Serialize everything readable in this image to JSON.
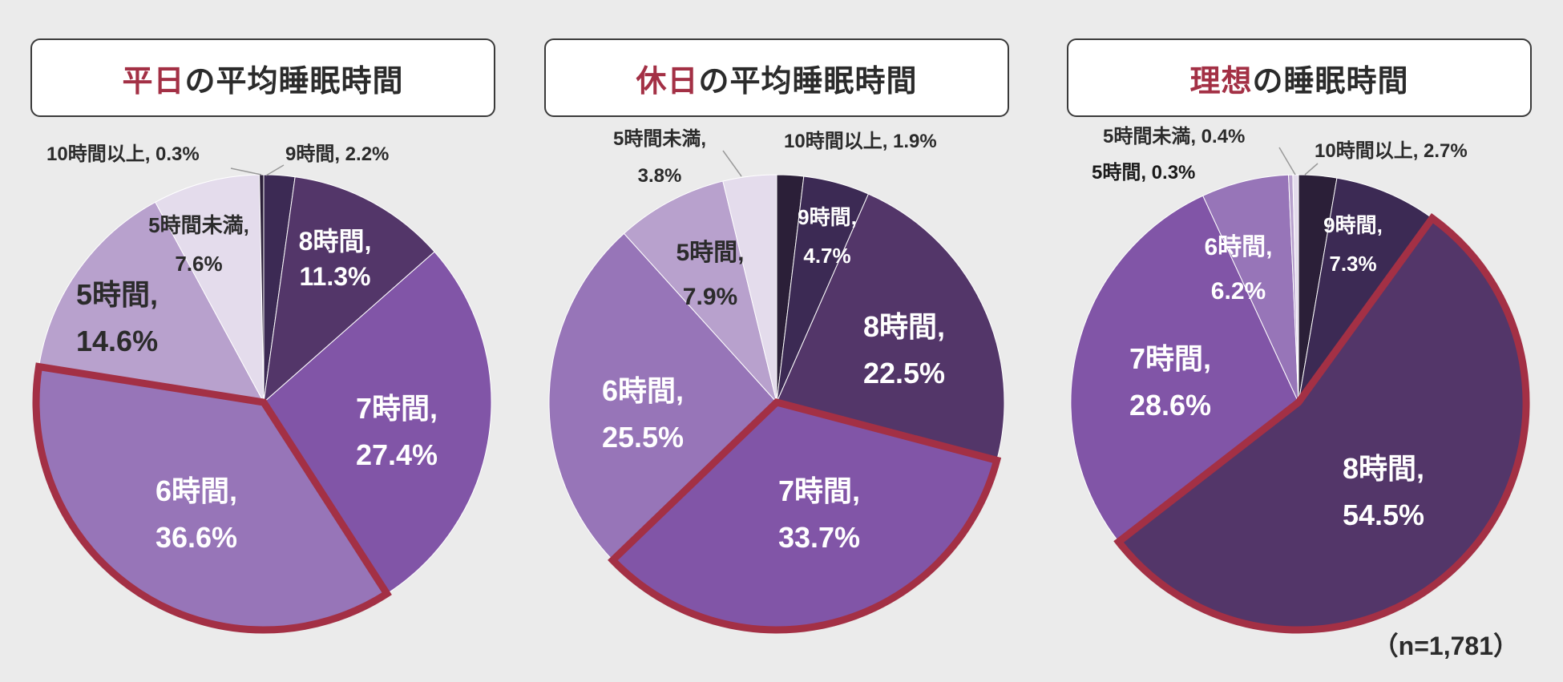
{
  "colors": {
    "highlight": "#a33045",
    "slices": {
      "10時間以上": "#2b1f38",
      "9時間": "#3c2a54",
      "8時間": "#533669",
      "7時間": "#8155a7",
      "6時間": "#9775b8",
      "5時間": "#b8a1cd",
      "5時間未満": "#e4dcec"
    }
  },
  "note": "（n=1,781）",
  "chart_data": [
    {
      "type": "pie",
      "title_highlight": "平日",
      "title_rest": "の平均睡眠時間",
      "highlight_slice": "6時間",
      "slices": [
        {
          "label": "9時間",
          "value": 2.2,
          "display": "9時間, 2.2%"
        },
        {
          "label": "8時間",
          "value": 11.3,
          "display": [
            "8時間,",
            "11.3%"
          ]
        },
        {
          "label": "7時間",
          "value": 27.4,
          "display": [
            "7時間,",
            "27.4%"
          ]
        },
        {
          "label": "6時間",
          "value": 36.6,
          "display": [
            "6時間,",
            "36.6%"
          ]
        },
        {
          "label": "5時間",
          "value": 14.6,
          "display": [
            "5時間,",
            "14.6%"
          ]
        },
        {
          "label": "5時間未満",
          "value": 7.6,
          "display": [
            "5時間未満,",
            "7.6%"
          ]
        },
        {
          "label": "10時間以上",
          "value": 0.3,
          "display": "10時間以上, 0.3%"
        }
      ]
    },
    {
      "type": "pie",
      "title_highlight": "休日",
      "title_rest": "の平均睡眠時間",
      "highlight_slice": "7時間",
      "slices": [
        {
          "label": "10時間以上",
          "value": 1.9,
          "display": "10時間以上, 1.9%"
        },
        {
          "label": "9時間",
          "value": 4.7,
          "display": [
            "9時間,",
            "4.7%"
          ]
        },
        {
          "label": "8時間",
          "value": 22.5,
          "display": [
            "8時間,",
            "22.5%"
          ]
        },
        {
          "label": "7時間",
          "value": 33.7,
          "display": [
            "7時間,",
            "33.7%"
          ]
        },
        {
          "label": "6時間",
          "value": 25.5,
          "display": [
            "6時間,",
            "25.5%"
          ]
        },
        {
          "label": "5時間",
          "value": 7.9,
          "display": [
            "5時間,",
            "7.9%"
          ]
        },
        {
          "label": "5時間未満",
          "value": 3.8,
          "display": [
            "5時間未満,",
            "3.8%"
          ]
        }
      ]
    },
    {
      "type": "pie",
      "title_highlight": "理想",
      "title_rest": "の睡眠時間",
      "highlight_slice": "8時間",
      "slices": [
        {
          "label": "10時間以上",
          "value": 2.7,
          "display": "10時間以上, 2.7%"
        },
        {
          "label": "9時間",
          "value": 7.3,
          "display": [
            "9時間,",
            "7.3%"
          ]
        },
        {
          "label": "8時間",
          "value": 54.5,
          "display": [
            "8時間,",
            "54.5%"
          ]
        },
        {
          "label": "7時間",
          "value": 28.6,
          "display": [
            "7時間,",
            "28.6%"
          ]
        },
        {
          "label": "6時間",
          "value": 6.2,
          "display": [
            "6時間,",
            "6.2%"
          ]
        },
        {
          "label": "5時間",
          "value": 0.3,
          "display": "5時間, 0.3%"
        },
        {
          "label": "5時間未満",
          "value": 0.4,
          "display": "5時間未満, 0.4%"
        }
      ]
    }
  ]
}
